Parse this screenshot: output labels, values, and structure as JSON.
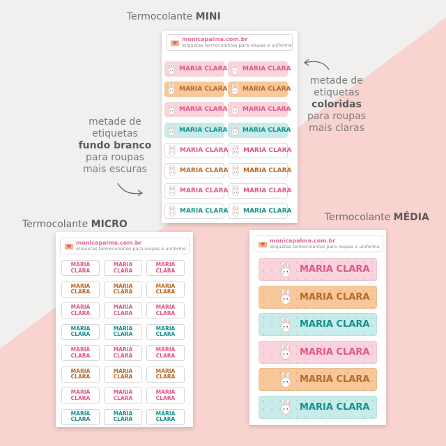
{
  "captions": {
    "mini": {
      "prefix": "Termocolante ",
      "bold": "MINI"
    },
    "micro": {
      "prefix": "Termocolante ",
      "bold": "MICRO"
    },
    "media": {
      "prefix": "Termocolante ",
      "bold": "MÉDIA"
    }
  },
  "notes": {
    "left": {
      "l1": "metade de",
      "l2": "etiquetas",
      "l3": "fundo branco",
      "l4": "para roupas",
      "l5": "mais escuras"
    },
    "right": {
      "l1": "metade de",
      "l2": "etiquetas",
      "l3": "coloridas",
      "l4": "para roupas",
      "l5": "mais claras"
    }
  },
  "brand": {
    "url": "monicapalma.com.br",
    "sub": "etiquetas termocolantes para roupas e uniforme"
  },
  "name": "MARIA CLARA",
  "name_l1": "MARIA",
  "name_l2": "CLARA",
  "colors": {
    "pink": "#e0578a",
    "orange": "#b8692a",
    "teal": "#16908e",
    "pink_bg": "#f9d4dc",
    "orange_bg": "#f8c89a",
    "teal_bg": "#c7ecea",
    "bg_pink": "#f8d3cf"
  },
  "icons": {
    "logo": "heart-envelope-icon",
    "bunny": "bunny-icon",
    "arrow": "curved-arrow-icon"
  }
}
